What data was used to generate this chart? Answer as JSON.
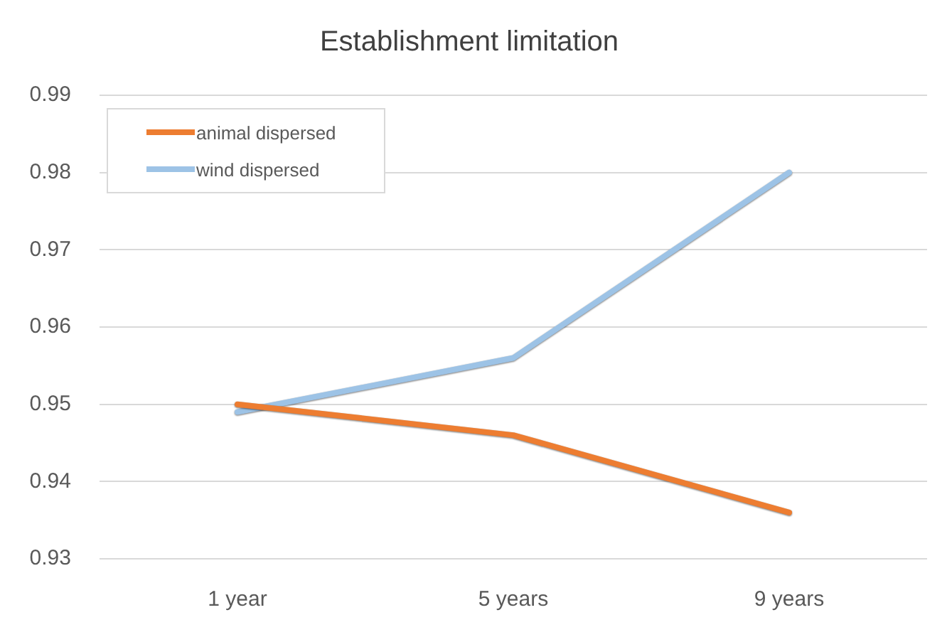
{
  "chart_data": {
    "type": "line",
    "title": "Establishment limitation",
    "categories": [
      "1 year",
      "5 years",
      "9 years"
    ],
    "series": [
      {
        "name": "animal dispersed",
        "color": "#ed7d31",
        "values": [
          0.95,
          0.946,
          0.936
        ]
      },
      {
        "name": "wind dispersed",
        "color": "#9dc3e6",
        "values": [
          0.949,
          0.956,
          0.98
        ]
      }
    ],
    "ylim": [
      0.93,
      0.99
    ],
    "yticks": [
      0.93,
      0.94,
      0.95,
      0.96,
      0.97,
      0.98,
      0.99
    ],
    "grid": "y",
    "legend": "top left",
    "marker": "none",
    "line_style": "solid"
  }
}
